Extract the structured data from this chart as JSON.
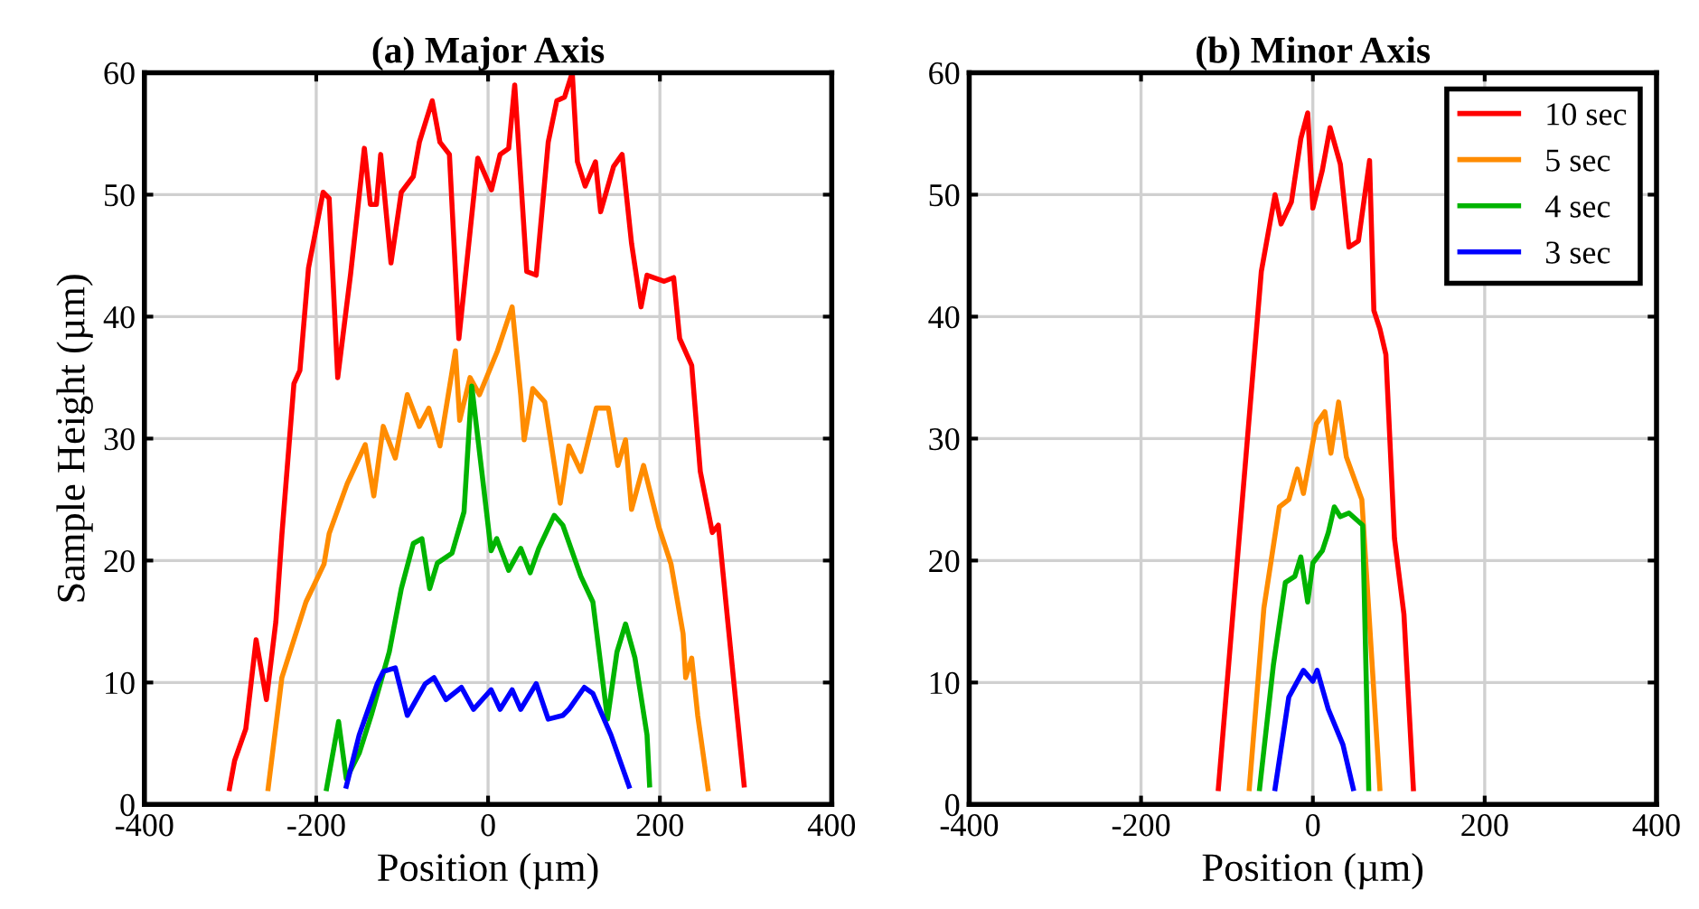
{
  "chart_data": [
    {
      "type": "line",
      "title": "(a) Major Axis",
      "xlabel": "Position (µm)",
      "ylabel": "Sample Height (µm)",
      "xlim": [
        -400,
        400
      ],
      "ylim": [
        0,
        60
      ],
      "xticks": [
        -400,
        -200,
        0,
        200,
        400
      ],
      "yticks": [
        0,
        10,
        20,
        30,
        40,
        50,
        60
      ],
      "grid": true,
      "legend": false,
      "line_style": "solid",
      "marker": "none",
      "series": [
        {
          "color": "#ff0000",
          "x": [
            -301,
            -295,
            -282,
            -270,
            -258,
            -247,
            -240,
            -226,
            -219,
            -209,
            -192,
            -185,
            -175,
            -160,
            -144,
            -137,
            -130,
            -125,
            -113,
            -101,
            -87,
            -80,
            -65,
            -56,
            -45,
            -34,
            -12,
            4,
            14,
            24,
            31,
            45,
            56,
            70,
            80,
            89,
            98,
            104,
            113,
            125,
            131,
            146,
            156,
            167,
            178,
            185,
            205,
            216,
            223,
            237,
            247,
            261,
            268,
            279,
            298
          ],
          "values": [
            1.3,
            3.6,
            6.2,
            13.5,
            8.6,
            15,
            22.1,
            34.5,
            35.6,
            44,
            50.2,
            49.7,
            35,
            43.5,
            53.8,
            49.2,
            49.2,
            53.3,
            44.4,
            50.2,
            51.5,
            54.3,
            57.7,
            54.3,
            53.3,
            38.2,
            53,
            50.4,
            53.3,
            53.8,
            59,
            43.7,
            43.4,
            54.3,
            57.7,
            58,
            60,
            52.7,
            50.7,
            52.7,
            48.6,
            52.3,
            53.3,
            46,
            40.8,
            43.4,
            42.9,
            43.2,
            38.2,
            36,
            27.3,
            22.3,
            22.9,
            15,
            1.6
          ]
        },
        {
          "color": "#ff8c00",
          "x": [
            -256,
            -240,
            -212,
            -191,
            -185,
            -164,
            -143,
            -133,
            -122,
            -108,
            -94,
            -80,
            -69,
            -56,
            -38,
            -33,
            -21,
            -10,
            11,
            28,
            38,
            42,
            52,
            66,
            84,
            94,
            108,
            126,
            140,
            151,
            160,
            167,
            181,
            199,
            213,
            227,
            230,
            237,
            244,
            256
          ],
          "values": [
            1.3,
            10.4,
            16.6,
            19.7,
            22.2,
            26.3,
            29.5,
            25.3,
            31,
            28.4,
            33.6,
            31,
            32.5,
            29.4,
            37.2,
            31.5,
            35,
            33.6,
            37.2,
            40.8,
            33.6,
            29.9,
            34.1,
            33,
            24.7,
            29.4,
            27.3,
            32.5,
            32.5,
            27.8,
            29.9,
            24.2,
            27.8,
            22.7,
            19.7,
            14,
            10.4,
            12,
            7.3,
            1.3
          ]
        },
        {
          "color": "#00b400",
          "x": [
            -188,
            -174,
            -165,
            -150,
            -136,
            -115,
            -101,
            -87,
            -77,
            -68,
            -59,
            -42,
            -28,
            -19,
            -3,
            3.5,
            10,
            24,
            38,
            49,
            59,
            77,
            87,
            108,
            122,
            139,
            150,
            160,
            171,
            185,
            188
          ],
          "values": [
            1.3,
            6.8,
            2.1,
            4.2,
            7.3,
            12.5,
            17.7,
            21.4,
            21.8,
            17.7,
            19.8,
            20.6,
            24,
            34.3,
            24.7,
            20.8,
            21.8,
            19.2,
            21,
            19,
            21,
            23.7,
            22.9,
            18.7,
            16.6,
            7,
            12.5,
            14.8,
            12,
            5.7,
            1.6
          ]
        },
        {
          "color": "#0000ff",
          "x": [
            -165,
            -150,
            -129,
            -122,
            -108,
            -94,
            -73,
            -63,
            -49,
            -31,
            -17,
            3.5,
            14,
            28,
            38,
            56,
            70,
            87,
            94,
            112,
            122,
            143,
            164
          ],
          "values": [
            1.5,
            5.7,
            9.9,
            10.9,
            11.2,
            7.3,
            9.9,
            10.4,
            8.6,
            9.6,
            7.8,
            9.4,
            7.8,
            9.4,
            7.8,
            9.9,
            7,
            7.3,
            7.8,
            9.6,
            9.1,
            5.7,
            1.5
          ]
        }
      ]
    },
    {
      "type": "line",
      "title": "(b) Minor Axis",
      "xlabel": "Position (µm)",
      "xlim": [
        -400,
        400
      ],
      "ylim": [
        0,
        60
      ],
      "xticks": [
        -400,
        -200,
        0,
        200,
        400
      ],
      "yticks": [
        0,
        10,
        20,
        30,
        40,
        50,
        60
      ],
      "grid": true,
      "legend": "top right",
      "line_style": "solid",
      "marker": "none",
      "series": [
        {
          "name": "10 sec",
          "color": "#ff0000",
          "x": [
            -110,
            -60,
            -44,
            -37,
            -25,
            -14,
            -6,
            0,
            11,
            20,
            32,
            42,
            53,
            66,
            71,
            78,
            85,
            95,
            106,
            117
          ],
          "values": [
            1.3,
            43.7,
            50,
            47.6,
            49.4,
            54.6,
            56.7,
            48.9,
            52,
            55.5,
            52.5,
            45.7,
            46.2,
            52.8,
            40.5,
            39,
            36.9,
            21.8,
            15.6,
            1.3
          ]
        },
        {
          "name": "5 sec",
          "color": "#ff8c00",
          "x": [
            -74,
            -57,
            -39,
            -28,
            -18,
            -11,
            4,
            14,
            21,
            30,
            39,
            57,
            78
          ],
          "values": [
            1.3,
            16.1,
            24.4,
            25,
            27.5,
            25.5,
            31.2,
            32.2,
            28.8,
            33,
            28.5,
            25,
            1.3
          ]
        },
        {
          "name": "4 sec",
          "color": "#00b400",
          "x": [
            -62,
            -46,
            -32,
            -21,
            -14,
            -6,
            0,
            11,
            18,
            25,
            32,
            42,
            58,
            65
          ],
          "values": [
            1.3,
            11.4,
            18.2,
            18.7,
            20.3,
            16.6,
            19.8,
            20.8,
            22.3,
            24.4,
            23.6,
            23.9,
            22.9,
            1.3
          ]
        },
        {
          "name": "3 sec",
          "color": "#0000ff",
          "x": [
            -44,
            -28,
            -11,
            0,
            5,
            18,
            35,
            47
          ],
          "values": [
            1.3,
            8.8,
            11,
            10.1,
            11,
            7.8,
            4.9,
            1.3
          ]
        }
      ]
    }
  ]
}
